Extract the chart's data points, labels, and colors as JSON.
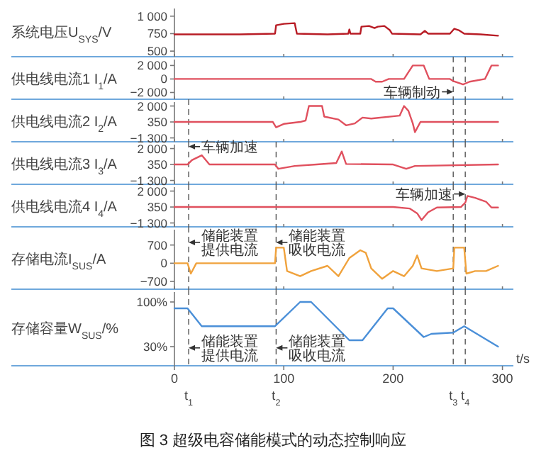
{
  "chart_data": [
    {
      "type": "line",
      "ylabel": "系统电压U$_{SYS}$/V",
      "xlim": [
        0,
        310
      ],
      "xticks": [
        0,
        100,
        200,
        300
      ],
      "ylim": [
        420,
        1150
      ],
      "yticks": [
        {
          "value": 1000,
          "label": "1 000"
        },
        750,
        500
      ],
      "tick_labels": "y",
      "series": [
        {
          "color": "#b81c25",
          "x": [
            0,
            20,
            60,
            92,
            93,
            100,
            110,
            112,
            140,
            159,
            160,
            161,
            170,
            171,
            178,
            183,
            186,
            192,
            197,
            199,
            225,
            229,
            232,
            252,
            256,
            260,
            265,
            280,
            296
          ],
          "values": [
            740,
            740,
            740,
            750,
            870,
            890,
            900,
            750,
            740,
            750,
            810,
            750,
            750,
            850,
            860,
            830,
            850,
            860,
            800,
            750,
            740,
            790,
            750,
            750,
            820,
            800,
            750,
            740,
            720
          ]
        }
      ]
    },
    {
      "type": "line",
      "ylabel": "供电线电流1 I$_{1}$/A",
      "xlim": [
        0,
        310
      ],
      "xticks": [
        0,
        100,
        200,
        300
      ],
      "ylim": [
        -3000,
        3300
      ],
      "yticks": [
        {
          "value": 2000,
          "label": "2 000"
        },
        0,
        {
          "value": -2000,
          "label": "−2 000"
        }
      ],
      "tick_labels": "y",
      "series": [
        {
          "color": "#e0505e",
          "x": [
            0,
            180,
            184,
            190,
            196,
            210,
            218,
            228,
            233,
            252,
            255,
            264,
            270,
            284,
            290,
            296
          ],
          "values": [
            0,
            0,
            -400,
            -400,
            0,
            0,
            2000,
            2000,
            0,
            0,
            -300,
            -800,
            -400,
            0,
            2000,
            2000
          ]
        }
      ],
      "ref_lines": [
        {
          "axis": "x",
          "value": 255,
          "line_style": "dashed",
          "color": "#555555"
        },
        {
          "axis": "x",
          "value": 266,
          "line_style": "dashed",
          "color": "#555555"
        }
      ],
      "annotations": [
        {
          "text": "车辆制动",
          "x": 255,
          "y": -1900
        }
      ]
    },
    {
      "type": "line",
      "ylabel": "供电线电流2 I$_{2}$/A",
      "xlim": [
        0,
        310
      ],
      "xticks": [
        0,
        100,
        200,
        300
      ],
      "ylim": [
        -1700,
        2700
      ],
      "yticks": [
        {
          "value": 2000,
          "label": "2 000"
        },
        350,
        {
          "value": -1300,
          "label": "−1 300"
        }
      ],
      "tick_labels": "y",
      "series": [
        {
          "color": "#e0505e",
          "x": [
            0,
            90,
            93,
            100,
            115,
            120,
            123,
            135,
            137,
            150,
            157,
            165,
            172,
            180,
            206,
            210,
            214,
            218,
            220,
            225,
            296
          ],
          "values": [
            350,
            350,
            -200,
            150,
            350,
            500,
            2000,
            2000,
            900,
            600,
            0,
            200,
            800,
            700,
            1000,
            2000,
            1500,
            200,
            -700,
            350,
            350
          ]
        }
      ],
      "ref_lines": [
        {
          "axis": "x",
          "value": 13,
          "line_style": "dashed",
          "color": "#555555"
        },
        {
          "axis": "x",
          "value": 255,
          "line_style": "dashed",
          "color": "#555555"
        },
        {
          "axis": "x",
          "value": 266,
          "line_style": "dashed",
          "color": "#555555"
        }
      ]
    },
    {
      "type": "line",
      "ylabel": "供电线电流3 I$_{3}$/A",
      "xlim": [
        0,
        310
      ],
      "xticks": [
        0,
        100,
        200,
        300
      ],
      "ylim": [
        -1700,
        2700
      ],
      "yticks": [
        {
          "value": 2000,
          "label": "2 000"
        },
        350,
        {
          "value": -1300,
          "label": "−1 300"
        }
      ],
      "tick_labels": "y",
      "series": [
        {
          "color": "#e0505e",
          "x": [
            0,
            12,
            16,
            25,
            32,
            92,
            95,
            110,
            130,
            148,
            153,
            157,
            200,
            212,
            220,
            296
          ],
          "values": [
            350,
            350,
            800,
            1300,
            350,
            350,
            -100,
            200,
            350,
            500,
            1700,
            400,
            350,
            -100,
            200,
            350
          ]
        }
      ],
      "ref_lines": [
        {
          "axis": "x",
          "value": 13,
          "line_style": "dashed",
          "color": "#555555"
        },
        {
          "axis": "x",
          "value": 93,
          "line_style": "dashed",
          "color": "#555555"
        },
        {
          "axis": "x",
          "value": 255,
          "line_style": "dashed",
          "color": "#555555"
        },
        {
          "axis": "x",
          "value": 266,
          "line_style": "dashed",
          "color": "#555555"
        }
      ],
      "annotations": [
        {
          "text": "车辆加速",
          "x": 13,
          "y": 2200
        }
      ]
    },
    {
      "type": "line",
      "ylabel": "供电线电流4 I$_{4}$/A",
      "xlim": [
        0,
        310
      ],
      "xticks": [
        0,
        100,
        200,
        300
      ],
      "ylim": [
        -1700,
        2700
      ],
      "yticks": [
        {
          "value": 2000,
          "label": "2 000"
        },
        350,
        {
          "value": -1300,
          "label": "−1 300"
        }
      ],
      "tick_labels": "y",
      "series": [
        {
          "color": "#e0505e",
          "x": [
            0,
            200,
            215,
            222,
            226,
            232,
            240,
            262,
            266,
            268,
            275,
            285,
            290,
            296
          ],
          "values": [
            350,
            350,
            200,
            -300,
            -1000,
            -200,
            300,
            350,
            800,
            1500,
            1300,
            900,
            300,
            300
          ]
        }
      ],
      "ref_lines": [
        {
          "axis": "x",
          "value": 13,
          "line_style": "dashed",
          "color": "#555555"
        },
        {
          "axis": "x",
          "value": 93,
          "line_style": "dashed",
          "color": "#555555"
        },
        {
          "axis": "x",
          "value": 255,
          "line_style": "dashed",
          "color": "#555555"
        },
        {
          "axis": "x",
          "value": 266,
          "line_style": "dashed",
          "color": "#555555"
        }
      ],
      "annotations": [
        {
          "text": "车辆加速",
          "x": 266,
          "y": 1700
        }
      ]
    },
    {
      "type": "line",
      "ylabel": "存储电流I$_{SUS}$/A",
      "xlim": [
        0,
        310
      ],
      "xticks": [
        0,
        100,
        200,
        300
      ],
      "ylim": [
        -1000,
        1400
      ],
      "yticks": [
        700,
        0,
        {
          "value": -700,
          "label": "−700"
        }
      ],
      "tick_labels": "y",
      "series": [
        {
          "color": "#f0a23c",
          "x": [
            0,
            12,
            15,
            20,
            92,
            93,
            100,
            103,
            115,
            125,
            140,
            150,
            160,
            170,
            175,
            180,
            190,
            200,
            210,
            218,
            222,
            226,
            240,
            255,
            256,
            265,
            267,
            275,
            285,
            296
          ],
          "values": [
            0,
            0,
            -400,
            0,
            0,
            600,
            600,
            -300,
            -500,
            -300,
            -100,
            -500,
            200,
            500,
            400,
            -200,
            -600,
            -300,
            -500,
            -100,
            300,
            -200,
            -300,
            -200,
            600,
            600,
            -400,
            -300,
            -300,
            -100
          ]
        }
      ],
      "ref_lines": [
        {
          "axis": "x",
          "value": 13,
          "line_style": "dashed",
          "color": "#555555"
        },
        {
          "axis": "x",
          "value": 93,
          "line_style": "dashed",
          "color": "#555555"
        },
        {
          "axis": "x",
          "value": 255,
          "line_style": "dashed",
          "color": "#555555"
        },
        {
          "axis": "x",
          "value": 266,
          "line_style": "dashed",
          "color": "#555555"
        }
      ],
      "annotations": [
        {
          "text": "储能装置提供电流",
          "x": 13,
          "y": 800
        },
        {
          "text": "储能装置吸收电流",
          "x": 93,
          "y": 800
        }
      ]
    },
    {
      "type": "line",
      "ylabel": "存储容量W$_{SUS}$/%",
      "xlabel": "t/s",
      "xlim": [
        0,
        310
      ],
      "ylim": [
        0,
        120
      ],
      "yticks": [
        {
          "value": 100,
          "label": "100%"
        },
        {
          "value": 30,
          "label": "30%"
        }
      ],
      "xticks": [
        0,
        100,
        200,
        300
      ],
      "series": [
        {
          "color": "#4a8fd8",
          "x": [
            0,
            12,
            25,
            92,
            115,
            125,
            160,
            172,
            195,
            200,
            228,
            235,
            255,
            265,
            296
          ],
          "values": [
            90,
            90,
            62,
            62,
            100,
            100,
            40,
            40,
            90,
            90,
            45,
            50,
            52,
            62,
            30
          ]
        }
      ],
      "ref_lines": [
        {
          "axis": "x",
          "value": 13,
          "line_style": "dashed",
          "color": "#555555",
          "label": "t$_{1}$"
        },
        {
          "axis": "x",
          "value": 93,
          "line_style": "dashed",
          "color": "#555555",
          "label": "t$_{2}$"
        },
        {
          "axis": "x",
          "value": 255,
          "line_style": "dashed",
          "color": "#555555",
          "label": "t$_{3}$"
        },
        {
          "axis": "x",
          "value": 266,
          "line_style": "dashed",
          "color": "#555555",
          "label": "t$_{4}$"
        }
      ],
      "annotations": [
        {
          "text": "储能装置提供电流",
          "x": 13,
          "y": 28
        },
        {
          "text": "储能装置吸收电流",
          "x": 93,
          "y": 28
        },
        "图 3 超级电容储能模式的动态控制响应"
      ]
    }
  ]
}
